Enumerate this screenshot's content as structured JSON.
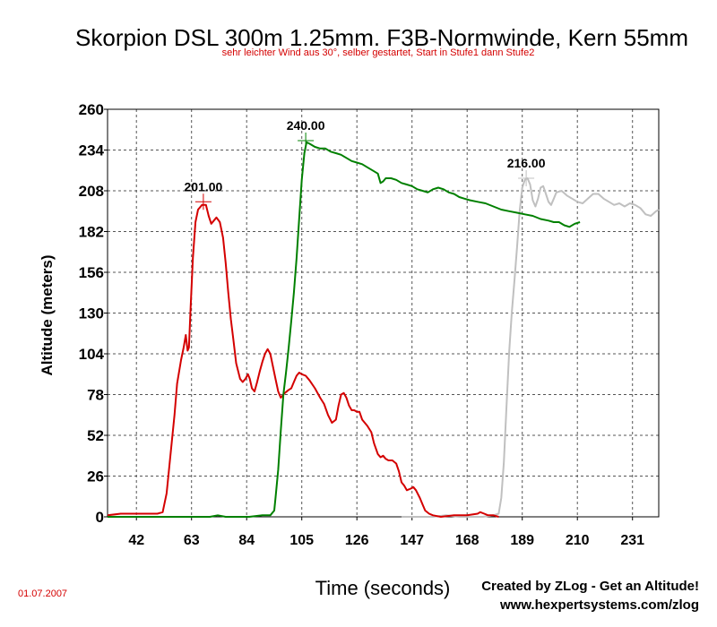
{
  "chart_data": {
    "type": "line",
    "title": "Skorpion DSL 300m 1.25mm. F3B-Normwinde, Kern 55mm",
    "subtitle": "sehr leichter Wind aus 30°, selber gestartet, Start in Stufe1 dann Stufe2",
    "xlabel": "Time (seconds)",
    "ylabel": "Altitude (meters)",
    "xlim": [
      31,
      241
    ],
    "ylim": [
      0,
      260
    ],
    "x_ticks": [
      "42",
      "63",
      "84",
      "105",
      "126",
      "147",
      "168",
      "189",
      "210",
      "231"
    ],
    "y_ticks": [
      "260",
      "234",
      "208",
      "182",
      "156",
      "130",
      "104",
      "78",
      "52",
      "26",
      "0"
    ],
    "grid": true,
    "legend": "none",
    "series": [
      {
        "color": "#d40000",
        "peak_label": "201.00",
        "peak": [
          67.5,
          201
        ],
        "points": [
          [
            31,
            1
          ],
          [
            36,
            2
          ],
          [
            40,
            2
          ],
          [
            45,
            2
          ],
          [
            50,
            2
          ],
          [
            52,
            3
          ],
          [
            53.5,
            15
          ],
          [
            55,
            40
          ],
          [
            56.5,
            65
          ],
          [
            57.5,
            85
          ],
          [
            59,
            100
          ],
          [
            60,
            108
          ],
          [
            60.8,
            116
          ],
          [
            61.5,
            106
          ],
          [
            62,
            108
          ],
          [
            62.7,
            135
          ],
          [
            63.5,
            165
          ],
          [
            64.5,
            188
          ],
          [
            65.5,
            196
          ],
          [
            67,
            199
          ],
          [
            68.5,
            199
          ],
          [
            69.5,
            192
          ],
          [
            70.5,
            187
          ],
          [
            71.5,
            189
          ],
          [
            72.5,
            191
          ],
          [
            73.8,
            188
          ],
          [
            75,
            178
          ],
          [
            76,
            162
          ],
          [
            77,
            143
          ],
          [
            78,
            126
          ],
          [
            79,
            112
          ],
          [
            80,
            98
          ],
          [
            81.5,
            88
          ],
          [
            82.5,
            86
          ],
          [
            83.5,
            88
          ],
          [
            84.5,
            91
          ],
          [
            85.2,
            88
          ],
          [
            86,
            82
          ],
          [
            87,
            80
          ],
          [
            88,
            86
          ],
          [
            89,
            93
          ],
          [
            90,
            99
          ],
          [
            91,
            104
          ],
          [
            92,
            107
          ],
          [
            93,
            104
          ],
          [
            94,
            96
          ],
          [
            95,
            88
          ],
          [
            96,
            80
          ],
          [
            97,
            76
          ],
          [
            98.5,
            79
          ],
          [
            100,
            81
          ],
          [
            101,
            82
          ],
          [
            102,
            86
          ],
          [
            103,
            90
          ],
          [
            104,
            92
          ],
          [
            105,
            91
          ],
          [
            106.5,
            90
          ],
          [
            108,
            87
          ],
          [
            110,
            82
          ],
          [
            112,
            76
          ],
          [
            113.5,
            72
          ],
          [
            115,
            65
          ],
          [
            116.5,
            60
          ],
          [
            118,
            62
          ],
          [
            119,
            71
          ],
          [
            120,
            78
          ],
          [
            121,
            79
          ],
          [
            122,
            76
          ],
          [
            123,
            71
          ],
          [
            124,
            68
          ],
          [
            125,
            68
          ],
          [
            126,
            67
          ],
          [
            127,
            67
          ],
          [
            128,
            62
          ],
          [
            130,
            58
          ],
          [
            131.5,
            54
          ],
          [
            132.5,
            47
          ],
          [
            134,
            40
          ],
          [
            135,
            38
          ],
          [
            136,
            39
          ],
          [
            137,
            37
          ],
          [
            138,
            36
          ],
          [
            139.5,
            36
          ],
          [
            141,
            34
          ],
          [
            142,
            29
          ],
          [
            143,
            22
          ],
          [
            144,
            20
          ],
          [
            145,
            17
          ],
          [
            146.5,
            18
          ],
          [
            147.5,
            19
          ],
          [
            148.5,
            17
          ],
          [
            150,
            12
          ],
          [
            151,
            8
          ],
          [
            152,
            4
          ],
          [
            153.5,
            2
          ],
          [
            155,
            1
          ],
          [
            158,
            0
          ],
          [
            163,
            1
          ],
          [
            168,
            1
          ],
          [
            172,
            2
          ],
          [
            173,
            3
          ],
          [
            174.5,
            2
          ],
          [
            176,
            1
          ],
          [
            178,
            1
          ],
          [
            180,
            0
          ]
        ]
      },
      {
        "color": "#008000",
        "peak_label": "240.00",
        "peak": [
          106.5,
          240
        ],
        "points": [
          [
            31,
            0
          ],
          [
            40,
            0
          ],
          [
            50,
            0
          ],
          [
            60,
            0
          ],
          [
            70,
            0
          ],
          [
            73,
            1
          ],
          [
            76,
            0
          ],
          [
            80,
            0
          ],
          [
            85,
            0
          ],
          [
            90,
            1
          ],
          [
            93,
            1
          ],
          [
            94.5,
            4
          ],
          [
            95,
            12
          ],
          [
            96,
            30
          ],
          [
            97,
            55
          ],
          [
            98,
            78
          ],
          [
            99,
            92
          ],
          [
            100,
            108
          ],
          [
            101,
            125
          ],
          [
            102,
            143
          ],
          [
            103,
            165
          ],
          [
            104,
            190
          ],
          [
            105,
            215
          ],
          [
            106,
            232
          ],
          [
            106.8,
            239
          ],
          [
            108,
            238
          ],
          [
            110,
            236
          ],
          [
            112,
            235
          ],
          [
            114,
            235
          ],
          [
            116,
            233
          ],
          [
            118,
            232
          ],
          [
            120,
            231
          ],
          [
            122,
            229
          ],
          [
            124,
            227
          ],
          [
            126,
            226
          ],
          [
            128,
            225
          ],
          [
            130,
            223
          ],
          [
            132,
            221
          ],
          [
            134,
            219
          ],
          [
            135,
            213
          ],
          [
            136,
            214
          ],
          [
            137,
            216
          ],
          [
            139,
            216
          ],
          [
            141,
            215
          ],
          [
            143,
            213
          ],
          [
            145,
            212
          ],
          [
            147,
            211
          ],
          [
            149,
            209
          ],
          [
            151,
            208
          ],
          [
            153,
            207
          ],
          [
            155,
            209
          ],
          [
            157,
            210
          ],
          [
            159,
            209
          ],
          [
            161,
            207
          ],
          [
            163,
            206
          ],
          [
            165,
            204
          ],
          [
            167,
            203
          ],
          [
            169,
            202
          ],
          [
            172,
            201
          ],
          [
            175,
            200
          ],
          [
            178,
            198
          ],
          [
            181,
            196
          ],
          [
            184,
            195
          ],
          [
            187,
            194
          ],
          [
            190,
            193
          ],
          [
            193,
            192
          ],
          [
            196,
            190
          ],
          [
            199,
            189
          ],
          [
            201,
            188
          ],
          [
            203,
            188
          ],
          [
            205,
            186
          ],
          [
            207,
            185
          ],
          [
            209,
            187
          ],
          [
            211,
            188
          ]
        ]
      },
      {
        "color": "#c0c0c0",
        "peak_label": "216.00",
        "peak": [
          190.5,
          216
        ],
        "points": [
          [
            143,
            0
          ],
          [
            150,
            0
          ],
          [
            155,
            0
          ],
          [
            160,
            1
          ],
          [
            165,
            0
          ],
          [
            170,
            0
          ],
          [
            174,
            0
          ],
          [
            178,
            1
          ],
          [
            180,
            2
          ],
          [
            181,
            12
          ],
          [
            182,
            35
          ],
          [
            183,
            70
          ],
          [
            184,
            105
          ],
          [
            185,
            130
          ],
          [
            186,
            150
          ],
          [
            187,
            172
          ],
          [
            188,
            195
          ],
          [
            189,
            210
          ],
          [
            190,
            215
          ],
          [
            191,
            216
          ],
          [
            192,
            212
          ],
          [
            193,
            202
          ],
          [
            194,
            198
          ],
          [
            195,
            203
          ],
          [
            196,
            210
          ],
          [
            197,
            211
          ],
          [
            198,
            206
          ],
          [
            199,
            201
          ],
          [
            200,
            199
          ],
          [
            201,
            203
          ],
          [
            202,
            207
          ],
          [
            204,
            208
          ],
          [
            206,
            205
          ],
          [
            208,
            203
          ],
          [
            210,
            201
          ],
          [
            212,
            200
          ],
          [
            214,
            203
          ],
          [
            216,
            206
          ],
          [
            218,
            206
          ],
          [
            220,
            203
          ],
          [
            222,
            201
          ],
          [
            224,
            199
          ],
          [
            226,
            200
          ],
          [
            228,
            198
          ],
          [
            230,
            200
          ],
          [
            232,
            199
          ],
          [
            234,
            197
          ],
          [
            236,
            193
          ],
          [
            238,
            192
          ],
          [
            240,
            195
          ],
          [
            241,
            196
          ]
        ]
      }
    ]
  },
  "footer": {
    "created_by": "Created by ZLog - Get an Altitude!",
    "website": "www.hexpertsystems.com/zlog",
    "date": "01.07.2007"
  }
}
